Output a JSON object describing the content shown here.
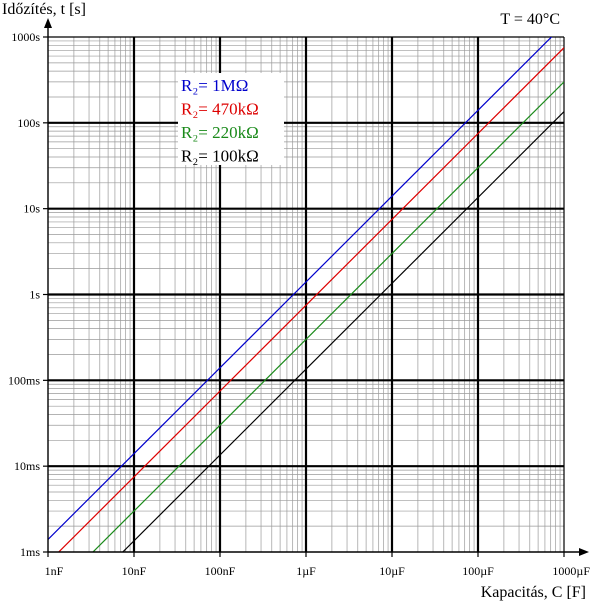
{
  "chart_data": {
    "type": "line",
    "scale": {
      "x": "log",
      "y": "log"
    },
    "grid": true,
    "xlabel": "Kapacitás,  C [F]",
    "ylabel": "Időzítés,  t [s]",
    "annotation": "T = 40°C",
    "xlim": [
      1e-09,
      0.001
    ],
    "ylim": [
      0.001,
      1000
    ],
    "x_ticks": [
      {
        "value": 1e-09,
        "label": "1nF"
      },
      {
        "value": 1e-08,
        "label": "10nF"
      },
      {
        "value": 1e-07,
        "label": "100nF"
      },
      {
        "value": 1e-06,
        "label": "1µF"
      },
      {
        "value": 1e-05,
        "label": "10µF"
      },
      {
        "value": 0.0001,
        "label": "100µF"
      },
      {
        "value": 0.001,
        "label": "1000µF"
      }
    ],
    "y_ticks": [
      {
        "value": 0.001,
        "label": "1ms"
      },
      {
        "value": 0.01,
        "label": "10ms"
      },
      {
        "value": 0.1,
        "label": "100ms"
      },
      {
        "value": 1,
        "label": "1s"
      },
      {
        "value": 10,
        "label": "10s"
      },
      {
        "value": 100,
        "label": "100s"
      },
      {
        "value": 1000,
        "label": "1000s"
      }
    ],
    "legend_position": "top-left",
    "series": [
      {
        "name": "R₂= 1MΩ",
        "color": "#0000cc",
        "x": [
          1e-09,
          0.001
        ],
        "y": [
          0.0014,
          1400
        ]
      },
      {
        "name": "R₂= 470kΩ",
        "color": "#dd0000",
        "x": [
          1e-09,
          0.001
        ],
        "y": [
          0.00075,
          750
        ]
      },
      {
        "name": "R₂= 220kΩ",
        "color": "#1a8a1a",
        "x": [
          1e-09,
          0.001
        ],
        "y": [
          0.0003,
          300
        ]
      },
      {
        "name": "R₂= 100kΩ",
        "color": "#000000",
        "x": [
          1e-09,
          0.001
        ],
        "y": [
          0.000135,
          135
        ]
      }
    ]
  }
}
